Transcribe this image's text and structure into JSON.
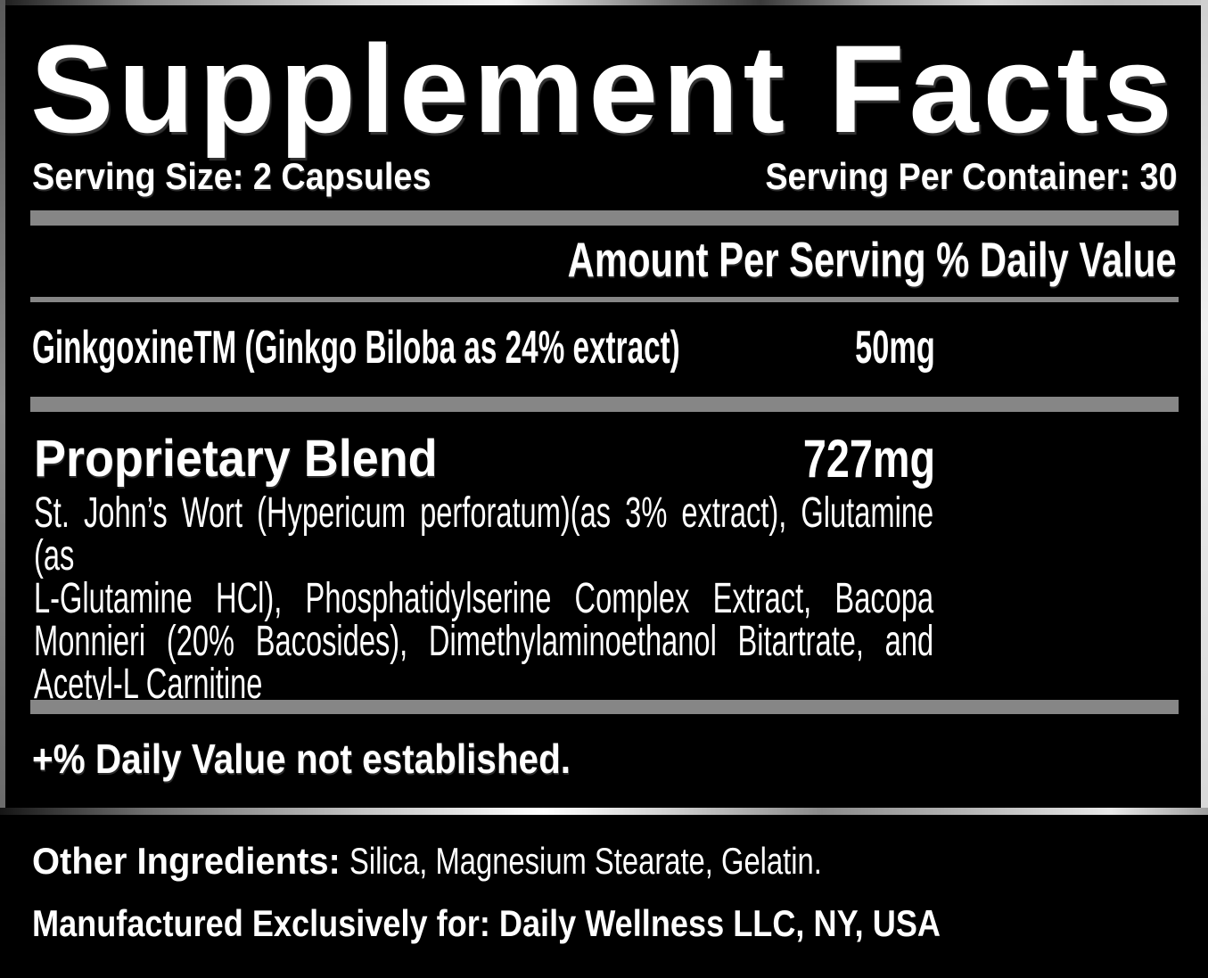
{
  "panel": {
    "title": "Supplement Facts",
    "serving_size": "Serving Size: 2 Capsules",
    "servings_per_container": "Serving Per Container: 30",
    "column_header": "Amount Per Serving % Daily Value",
    "rows": [
      {
        "name": "GinkgoxineTM (Ginkgo Biloba as 24% extract)",
        "amount": "50mg"
      }
    ],
    "blend": {
      "name": "Proprietary Blend",
      "amount": "727mg",
      "description_lines": [
        "St. John’s Wort (Hypericum perforatum)(as 3% extract), Glutamine (as",
        "L-Glutamine HCl), Phosphatidylserine Complex Extract, Bacopa",
        "Monnieri (20% Bacosides), Dimethylaminoethanol Bitartrate, and",
        "Acetyl-L Carnitine"
      ]
    },
    "footnote": "+% Daily Value not established."
  },
  "footer": {
    "other_ingredients_label": "Other Ingredients:",
    "other_ingredients_value": "Silica, Magnesium Stearate, Gelatin.",
    "manufactured_line": "Manufactured Exclusively for: Daily Wellness LLC, NY, USA"
  },
  "colors": {
    "background": "#000000",
    "divider_gray": "#868686",
    "text": "#ffffff"
  }
}
